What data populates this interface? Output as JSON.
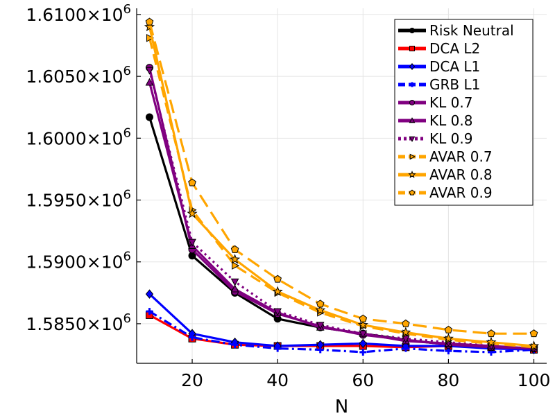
{
  "chart_data": {
    "type": "line",
    "title": "",
    "xlabel": "N",
    "ylabel": "",
    "xlim": [
      7,
      103
    ],
    "ylim": [
      1581800,
      1610500
    ],
    "xticks": [
      20,
      40,
      60,
      80,
      100
    ],
    "yticks": [
      {
        "value": 1585000,
        "mantissa": "1.5850",
        "exponent": "6"
      },
      {
        "value": 1590000,
        "mantissa": "1.5900",
        "exponent": "6"
      },
      {
        "value": 1595000,
        "mantissa": "1.5950",
        "exponent": "6"
      },
      {
        "value": 1600000,
        "mantissa": "1.6000",
        "exponent": "6"
      },
      {
        "value": 1605000,
        "mantissa": "1.6050",
        "exponent": "6"
      },
      {
        "value": 1610000,
        "mantissa": "1.6100",
        "exponent": "6"
      }
    ],
    "times_sign": "×10",
    "grid": true,
    "legend_position": "top-right",
    "x": [
      10,
      20,
      30,
      40,
      50,
      60,
      70,
      80,
      90,
      100
    ],
    "series": [
      {
        "name": "Risk Neutral",
        "color": "#000000",
        "dash": "solid",
        "marker": "circle",
        "values": [
          1601700,
          1590500,
          1587500,
          1585400,
          1584700,
          1584200,
          1583700,
          1583300,
          1583100,
          1582900
        ]
      },
      {
        "name": "DCA L2",
        "color": "#ff0000",
        "dash": "solid",
        "marker": "square",
        "values": [
          1585700,
          1583800,
          1583300,
          1583200,
          1583200,
          1583200,
          1583100,
          1583200,
          1583100,
          1582900
        ]
      },
      {
        "name": "DCA L1",
        "color": "#0000ff",
        "dash": "solid",
        "marker": "diamond",
        "values": [
          1587400,
          1584200,
          1583500,
          1583200,
          1583300,
          1583400,
          1583200,
          1583200,
          1583000,
          1582900
        ]
      },
      {
        "name": "GRB L1",
        "color": "#0000ff",
        "dash": "dashdot",
        "marker": "plus",
        "values": [
          1586000,
          1583900,
          1583300,
          1583000,
          1582900,
          1582700,
          1583000,
          1582800,
          1582700,
          1582900
        ]
      },
      {
        "name": "KL 0.7",
        "color": "#800080",
        "dash": "solid",
        "marker": "circle",
        "values": [
          1605700,
          1591000,
          1587600,
          1585800,
          1584800,
          1584100,
          1583700,
          1583300,
          1583100,
          1583000
        ]
      },
      {
        "name": "KL 0.8",
        "color": "#800080",
        "dash": "solid",
        "marker": "triangle-up",
        "values": [
          1604500,
          1591300,
          1587800,
          1585900,
          1584700,
          1584200,
          1583600,
          1583400,
          1583200,
          1583000
        ]
      },
      {
        "name": "KL 0.9",
        "color": "#800080",
        "dash": "dot",
        "marker": "triangle-down",
        "values": [
          1605500,
          1591600,
          1588400,
          1586000,
          1584900,
          1584200,
          1583800,
          1583500,
          1583200,
          1583000
        ]
      },
      {
        "name": "AVAR 0.7",
        "color": "#ffa500",
        "dash": "dash",
        "marker": "triangle-right",
        "values": [
          1608100,
          1594200,
          1589700,
          1587500,
          1585900,
          1584800,
          1584200,
          1583700,
          1583400,
          1583100
        ]
      },
      {
        "name": "AVAR 0.8",
        "color": "#ffa500",
        "dash": "solid",
        "marker": "star",
        "values": [
          1609000,
          1593900,
          1590200,
          1587600,
          1586100,
          1584900,
          1584300,
          1583800,
          1583500,
          1583200
        ]
      },
      {
        "name": "AVAR 0.9",
        "color": "#ffa500",
        "dash": "longdash",
        "marker": "pentagon",
        "values": [
          1609400,
          1596400,
          1591000,
          1588600,
          1586600,
          1585400,
          1585000,
          1584500,
          1584200,
          1584200
        ]
      }
    ]
  }
}
